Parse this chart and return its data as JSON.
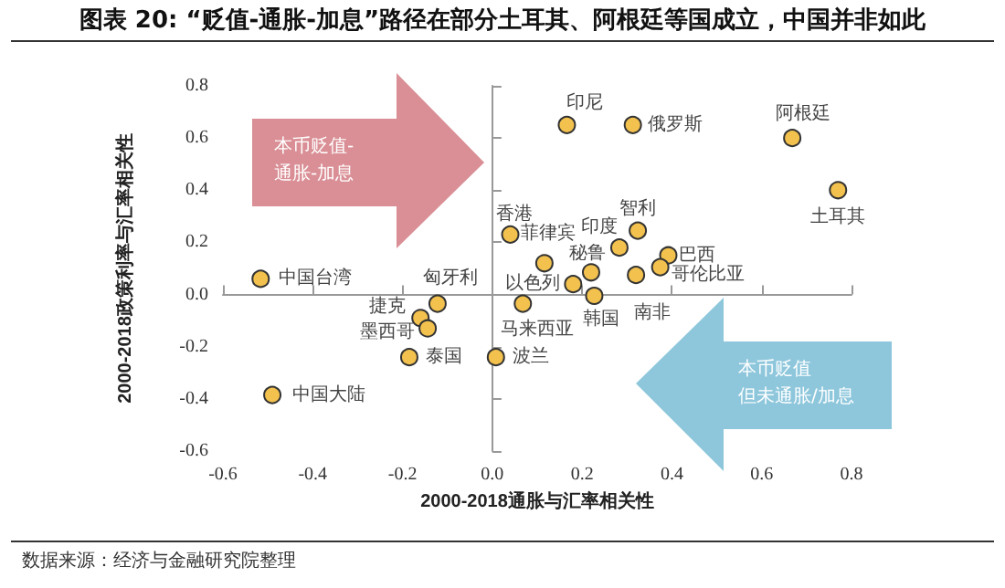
{
  "chart_data": {
    "type": "scatter",
    "title": "图表 20: “贬值-通胀-加息”路径在部分土耳其、阿根廷等国成立，中国并非如此",
    "xlabel": "2000-2018通胀与汇率相关性",
    "ylabel": "2000-2018政策利率与汇率相关性",
    "x": [
      0.166,
      0.313,
      0.668,
      0.77,
      0.04,
      0.116,
      0.18,
      0.283,
      0.324,
      0.392,
      0.374,
      0.22,
      0.32,
      0.227,
      0.068,
      -0.516,
      -0.122,
      -0.16,
      -0.144,
      -0.185,
      0.008,
      -0.49
    ],
    "values": [
      0.65,
      0.65,
      0.6,
      0.4,
      0.23,
      0.12,
      0.04,
      0.18,
      0.245,
      0.15,
      0.105,
      0.085,
      0.075,
      -0.005,
      -0.035,
      0.06,
      -0.035,
      -0.09,
      -0.13,
      -0.24,
      -0.24,
      -0.385
    ],
    "color": "#f2c14e",
    "marker": "circle",
    "xlim": [
      -0.6,
      0.8
    ],
    "ylim": [
      -0.6,
      0.8
    ],
    "xticks": [
      -0.6,
      -0.4,
      -0.2,
      {
        "value": 0,
        "label": "0.0"
      },
      0.2,
      0.4,
      0.6,
      0.8
    ],
    "yticks": [
      -0.6,
      -0.4,
      -0.2,
      {
        "value": 0,
        "label": "0.0"
      },
      0.2,
      0.4,
      0.6,
      0.8
    ],
    "annotations": [
      "本币贬值-",
      "通胀-加息",
      "本币贬值",
      "但未通胀/加息",
      "数据来源：经济与金融研究院整理",
      {
        "text": "印尼",
        "x": 0.166,
        "y": 0.65
      },
      {
        "text": "俄罗斯",
        "x": 0.313,
        "y": 0.65
      },
      {
        "text": "阿根廷",
        "x": 0.668,
        "y": 0.6
      },
      {
        "text": "土耳其",
        "x": 0.77,
        "y": 0.4
      },
      {
        "text": "香港",
        "x": 0.04,
        "y": 0.23
      },
      {
        "text": "菲律宾",
        "x": 0.116,
        "y": 0.12
      },
      {
        "text": "以色列",
        "x": 0.18,
        "y": 0.04
      },
      {
        "text": "印度",
        "x": 0.283,
        "y": 0.18
      },
      {
        "text": "智利",
        "x": 0.324,
        "y": 0.245
      },
      {
        "text": "巴西",
        "x": 0.392,
        "y": 0.15
      },
      {
        "text": "哥伦比亚",
        "x": 0.374,
        "y": 0.105
      },
      {
        "text": "秘鲁",
        "x": 0.22,
        "y": 0.085
      },
      {
        "text": "南非",
        "x": 0.32,
        "y": 0.075
      },
      {
        "text": "韩国",
        "x": 0.227,
        "y": -0.005
      },
      {
        "text": "马来西亚",
        "x": 0.068,
        "y": -0.035
      },
      {
        "text": "中国台湾",
        "x": -0.516,
        "y": 0.06
      },
      {
        "text": "匈牙利",
        "x": -0.122,
        "y": -0.035
      },
      {
        "text": "捷克",
        "x": -0.16,
        "y": -0.09
      },
      {
        "text": "墨西哥",
        "x": -0.144,
        "y": -0.13
      },
      {
        "text": "泰国",
        "x": -0.185,
        "y": -0.24
      },
      {
        "text": "波兰",
        "x": 0.008,
        "y": -0.24
      },
      {
        "text": "中国大陆",
        "x": -0.49,
        "y": -0.385
      }
    ]
  }
}
